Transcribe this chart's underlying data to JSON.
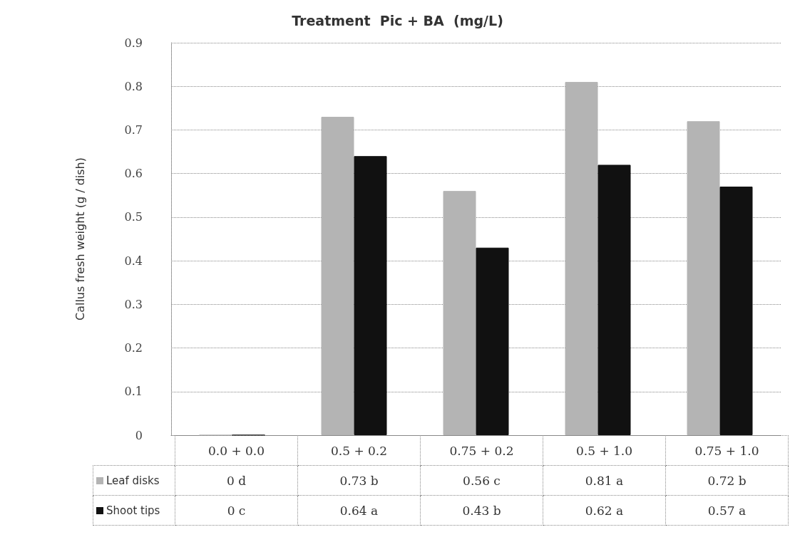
{
  "chart_data": {
    "type": "bar",
    "title": "Treatment  Pic + BA  (mg/L)",
    "ylabel": "Callus fresh weight (g / dish)",
    "categories": [
      "0.0 + 0.0",
      "0.5 + 0.2",
      "0.75 + 0.2",
      "0.5 + 1.0",
      "0.75 + 1.0"
    ],
    "series": [
      {
        "name": "Leaf disks",
        "color": "#b4b4b4",
        "values": [
          0,
          0.73,
          0.56,
          0.81,
          0.72
        ],
        "value_labels": [
          "0 d",
          "0.73 b",
          "0.56 c",
          "0.81 a",
          "0.72 b"
        ]
      },
      {
        "name": "Shoot tips",
        "color": "#111111",
        "values": [
          0,
          0.64,
          0.43,
          0.62,
          0.57
        ],
        "value_labels": [
          "0 c",
          "0.64 a",
          "0.43 b",
          "0.62 a",
          "0.57 a"
        ]
      }
    ],
    "ylim": [
      0,
      0.9
    ],
    "yticks": [
      0,
      0.1,
      0.2,
      0.3,
      0.4,
      0.5,
      0.6,
      0.7,
      0.8,
      0.9
    ],
    "grid": "y",
    "legend": "bottom left"
  }
}
